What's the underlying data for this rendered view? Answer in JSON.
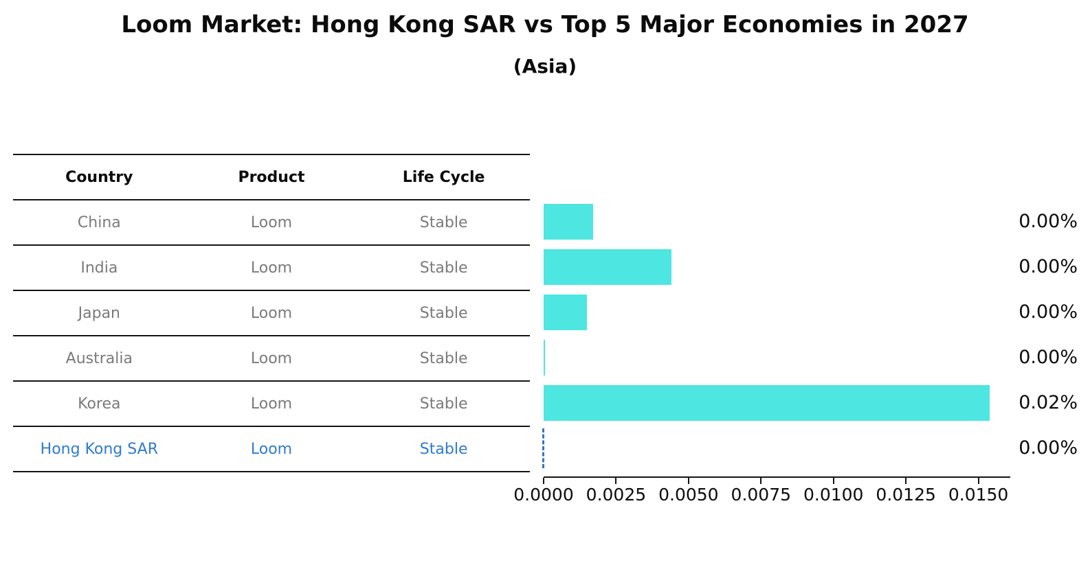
{
  "chart_data": {
    "type": "bar",
    "orientation": "horizontal",
    "title": "Loom Market: Hong Kong SAR vs Top 5 Major Economies in 2027",
    "subtitle": "(Asia)",
    "categories": [
      "China",
      "India",
      "Japan",
      "Australia",
      "Korea",
      "Hong Kong SAR"
    ],
    "values": [
      0.0017,
      0.0044,
      0.0015,
      5e-05,
      0.0154,
      2e-05
    ],
    "value_unit": "percent",
    "bar_labels": [
      "0.00%",
      "0.00%",
      "0.00%",
      "0.00%",
      "0.02%",
      "0.00%"
    ],
    "xticks": [
      0.0,
      0.0025,
      0.005,
      0.0075,
      0.01,
      0.0125,
      0.015
    ],
    "xtick_labels": [
      "0.0000",
      "0.0025",
      "0.0050",
      "0.0075",
      "0.0100",
      "0.0125",
      "0.0150"
    ],
    "xlim": [
      0,
      0.0161
    ],
    "grid": false,
    "legend": false,
    "highlight_index": 5,
    "highlight_marker": "dashed-vertical-line-at-value",
    "bar_color": "#4de6e1",
    "highlight_color": "#2e7bd2"
  },
  "table": {
    "columns": [
      "Country",
      "Product",
      "Life Cycle"
    ],
    "rows": [
      {
        "country": "China",
        "product": "Loom",
        "life_cycle": "Stable",
        "highlight": false
      },
      {
        "country": "India",
        "product": "Loom",
        "life_cycle": "Stable",
        "highlight": false
      },
      {
        "country": "Japan",
        "product": "Loom",
        "life_cycle": "Stable",
        "highlight": false
      },
      {
        "country": "Australia",
        "product": "Loom",
        "life_cycle": "Stable",
        "highlight": false
      },
      {
        "country": "Korea",
        "product": "Loom",
        "life_cycle": "Stable",
        "highlight": false
      },
      {
        "country": "Hong Kong SAR",
        "product": "Loom",
        "life_cycle": "Stable",
        "highlight": true
      }
    ]
  }
}
